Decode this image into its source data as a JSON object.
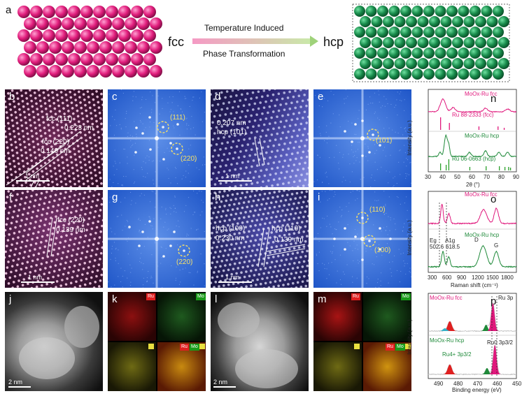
{
  "a": {
    "letter": "a",
    "left_phase": "fcc",
    "right_phase": "hcp",
    "arrow_top": "Temperature Induced",
    "arrow_bottom": "Phase Transformation"
  },
  "b": {
    "letter": "b",
    "label1": "fcc (111)",
    "val1": "0.223 nm",
    "label2": "fcc (220)",
    "val2": "0.140 nm",
    "scale": "1 nm"
  },
  "c": {
    "letter": "c",
    "spot1": "(111)",
    "spot2": "(220)"
  },
  "d": {
    "letter": "d",
    "val": "0.207 nm",
    "label": "hcp (101)",
    "scale": "1 nm"
  },
  "e": {
    "letter": "e",
    "spot": "(101)"
  },
  "f": {
    "letter": "f",
    "label": "fcc (220)",
    "val": "0.139 nm",
    "scale": "1 nm"
  },
  "g": {
    "letter": "g",
    "spot": "(220)"
  },
  "h": {
    "letter": "h",
    "label1": "hcp (100)",
    "val1": "0.230 nm",
    "label2": "hcp (110)",
    "val2": "0.139 nm",
    "scale": "1 nm"
  },
  "i": {
    "letter": "i",
    "spot1": "(110)",
    "spot2": "(100)"
  },
  "j": {
    "letter": "j",
    "scale": "2 nm"
  },
  "k": {
    "letter": "k",
    "ru": "Ru",
    "mo": "Mo"
  },
  "l": {
    "letter": "l",
    "scale": "2 nm"
  },
  "m": {
    "letter": "m",
    "ru": "Ru",
    "mo": "Mo"
  },
  "n": {
    "letter": "n",
    "top_series": "MoOx-Ru fcc",
    "top_ref": "Ru 88-2333 (fcc)",
    "bottom_series": "MoOx-Ru hcp",
    "bottom_ref": "Ru 06-0663 (hcp)",
    "ylabel": "Intensity (a.u.)",
    "xlabel": "2θ (°)",
    "xticks": [
      "30",
      "40",
      "50",
      "60",
      "70",
      "80",
      "90"
    ]
  },
  "o": {
    "letter": "o",
    "top_series": "MoOx-Ru fcc",
    "bottom_series": "MoOx-Ru hcp",
    "ylabel": "Intensity (a.u.)",
    "xlabel": "Raman shift (cm⁻¹)",
    "xticks": [
      "300",
      "600",
      "900",
      "1200",
      "1500",
      "1800"
    ],
    "eg": "Eg",
    "eg_val": "502.6",
    "a1g": "A1g",
    "a1g_val": "618.5",
    "d": "D",
    "g": "G"
  },
  "p": {
    "letter": "p",
    "top_series": "MoOx-Ru fcc",
    "bottom_series": "MoOx-Ru hcp",
    "region": "Ru 3p",
    "ylabel": "Intensity (a.u.)",
    "xlabel": "Binding energy (eV)",
    "xticks": [
      "490",
      "480",
      "470",
      "460",
      "450"
    ],
    "ru4": "Ru4+ 3p3/2",
    "ru0": "Ru0 3p3/2"
  },
  "colors": {
    "fcc": "#e0187c",
    "hcp": "#1f8a3a",
    "ref_hcp": "#2aa02a",
    "fft": "#2a66d8"
  }
}
